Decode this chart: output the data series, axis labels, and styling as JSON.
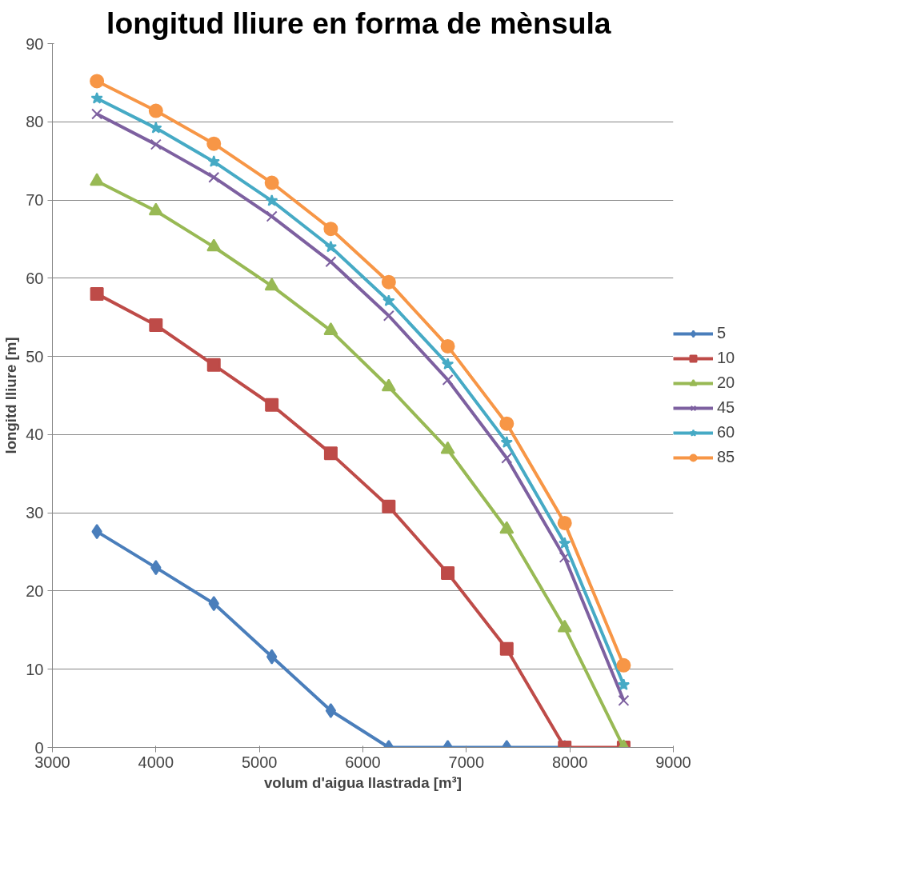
{
  "chart_data": {
    "type": "line",
    "title": "longitud lliure en  forma de mènsula",
    "xlabel": "volum d'aigua llastrada [m³]",
    "ylabel": "longitd lliure [m]",
    "x": [
      3430,
      4000,
      4560,
      5120,
      5690,
      6250,
      6820,
      7390,
      7950,
      8520
    ],
    "series": [
      {
        "name": "5",
        "color": "#4a7ebb",
        "marker": "diamond",
        "values": [
          27.6,
          23.0,
          18.4,
          11.6,
          4.7,
          0,
          0,
          0,
          0,
          null
        ]
      },
      {
        "name": "10",
        "color": "#be4b48",
        "marker": "square",
        "values": [
          58,
          54,
          48.9,
          43.8,
          37.6,
          30.8,
          22.3,
          12.6,
          0,
          0
        ]
      },
      {
        "name": "20",
        "color": "#98b954",
        "marker": "triangle",
        "values": [
          72.4,
          68.6,
          64,
          59,
          53.3,
          46.1,
          38.1,
          27.9,
          15.3,
          0
        ]
      },
      {
        "name": "45",
        "color": "#7d60a0",
        "marker": "cross",
        "values": [
          81,
          77.1,
          72.9,
          67.9,
          62.1,
          55.2,
          47,
          37,
          24.3,
          6
        ]
      },
      {
        "name": "60",
        "color": "#46aac5",
        "marker": "star",
        "values": [
          83,
          79.2,
          74.9,
          69.9,
          64,
          57.1,
          49,
          39,
          26.1,
          8
        ]
      },
      {
        "name": "85",
        "color": "#f79646",
        "marker": "circle",
        "values": [
          85.2,
          81.4,
          77.2,
          72.2,
          66.3,
          59.5,
          51.3,
          41.4,
          28.7,
          10.5
        ]
      }
    ],
    "xlim": [
      3000,
      9000
    ],
    "xticks": [
      3000,
      4000,
      5000,
      6000,
      7000,
      8000,
      9000
    ],
    "ylim": [
      0,
      90
    ],
    "yticks": [
      0,
      10,
      20,
      30,
      40,
      50,
      60,
      70,
      80,
      90
    ],
    "grid": "y",
    "legend": "right",
    "line_style": "solid"
  }
}
